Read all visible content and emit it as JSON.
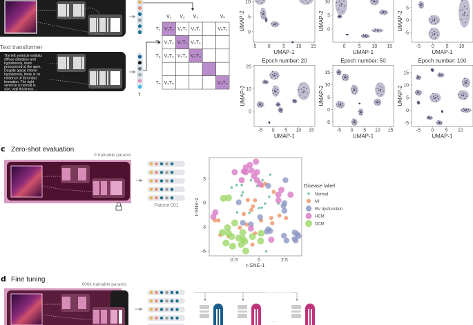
{
  "text_transformer": {
    "title": "Text transformer",
    "report_lines": [
      "The left ventricle exhibits",
      "diffuse dilatation and",
      "hypokinesis, most",
      "pronounced at the apex.",
      "Despite apical inferior",
      "hypokinesis, there is no",
      "evidence of thrombus",
      "formation. The right",
      "ventricle is normal in",
      "size, wall thickness ..."
    ],
    "vector_label": "T",
    "vector_colors": [
      "#1a5e8e",
      "#111111",
      "#777777",
      "#aaaaaa",
      "#e88ec0",
      "#3cb8e0"
    ]
  },
  "video_encoder": {
    "vector_colors": [
      "#e8b04a",
      "#e88a7a",
      "#1a6e8e",
      "#9a9a9a",
      "#1a6e8e",
      "#1a6e8e"
    ]
  },
  "similarity_matrix": {
    "col_headers": [
      "V₁",
      "V₂",
      "V₃",
      "",
      "Vₙ"
    ],
    "row_headers": [
      "T₁",
      "T₂",
      "T₃",
      "",
      "Tₙ"
    ],
    "cells": [
      [
        "V₁T₁",
        "V₂T₁",
        "V₃T₁",
        "",
        "VₙT₁"
      ],
      [
        "V₁T₂",
        "V₂T₂",
        "V₃T₂",
        "",
        ""
      ],
      [
        "V₁T₃",
        "V₂T₃",
        "V₃T₃",
        "",
        ""
      ],
      [
        "",
        "",
        "",
        "",
        ""
      ],
      [
        "V₁Tₙ",
        "",
        "",
        "",
        "VₙTₙ"
      ]
    ],
    "highlight_color": "#b98ccb"
  },
  "umap_plots": [
    {
      "title": "",
      "xlabel": "UMAP-1",
      "ylabel": "UMAP-2",
      "xticks": [
        -5,
        0,
        5,
        10,
        15
      ],
      "yticks": [
        0,
        5,
        10
      ],
      "xlim": [
        -5.3,
        15.5
      ],
      "ylim": [
        -3.5,
        15.2
      ],
      "clusters": [
        [
          -3,
          11,
          2,
          2
        ],
        [
          -2,
          6,
          1,
          2
        ],
        [
          -1,
          4,
          0.5,
          1
        ],
        [
          2,
          2.5,
          1.5,
          1
        ],
        [
          12.5,
          11,
          2.5,
          2
        ],
        [
          8,
          -3.5,
          0.3,
          0.3
        ]
      ]
    },
    {
      "title": "",
      "xlabel": "UMAP-1",
      "ylabel": "UMAP-2",
      "xticks": [
        0,
        5,
        10,
        15
      ],
      "yticks": [
        0,
        5,
        10
      ],
      "xlim": [
        -3.8,
        16.3
      ],
      "ylim": [
        -4.7,
        15.4
      ],
      "clusters": [
        [
          -1,
          9,
          2,
          4
        ],
        [
          -1.5,
          4.5,
          0.8,
          0.7
        ],
        [
          10,
          10,
          1.5,
          1.5
        ],
        [
          13,
          6,
          1.5,
          1
        ],
        [
          7,
          -2.5,
          1.5,
          0.8
        ],
        [
          11,
          -0.5,
          2,
          0.7
        ],
        [
          1,
          -2,
          0.5,
          0.2
        ]
      ]
    },
    {
      "title": "",
      "xlabel": "UMAP-1",
      "ylabel": "UMAP-2",
      "xticks": [
        -5,
        0,
        5,
        10
      ],
      "yticks": [
        -5,
        0,
        5
      ],
      "xlim": [
        -7.4,
        14.0
      ],
      "ylim": [
        -8.8,
        13.5
      ],
      "clusters": [
        [
          -4,
          6,
          1,
          1.5
        ],
        [
          0.5,
          0,
          2,
          2
        ],
        [
          0.5,
          -5.5,
          2,
          2.5
        ],
        [
          11,
          3,
          2,
          6
        ]
      ]
    },
    {
      "title": "Epoch number: 20",
      "xlabel": "UMAP-1",
      "ylabel": "UMAP-2",
      "xticks": [
        -5,
        0,
        5,
        10,
        15
      ],
      "yticks": [
        0,
        10,
        20
      ],
      "xlim": [
        -7.5,
        16.4
      ],
      "ylim": [
        -6.7,
        20.5
      ],
      "clusters": [
        [
          -5,
          3,
          1.5,
          1.5
        ],
        [
          -3,
          13,
          1.3,
          1
        ],
        [
          0.5,
          16,
          2,
          2
        ],
        [
          1,
          9,
          1.5,
          2.5
        ],
        [
          2,
          3,
          1,
          1
        ],
        [
          3,
          0.5,
          1,
          1.3
        ],
        [
          12,
          9,
          2.5,
          4
        ],
        [
          8.5,
          4.5,
          1,
          1
        ],
        [
          -1.5,
          -5,
          0.3,
          0.5
        ]
      ]
    },
    {
      "title": "Epoch number: 50",
      "xlabel": "UMAP-1",
      "ylabel": "UMAP-2",
      "xticks": [
        -5,
        0,
        5,
        10,
        15
      ],
      "yticks": [
        -5,
        0,
        5,
        10,
        15
      ],
      "xlim": [
        -7.4,
        16.2
      ],
      "ylim": [
        -6.7,
        17.9
      ],
      "clusters": [
        [
          -5,
          15,
          1,
          1.3
        ],
        [
          -2.5,
          13,
          1.5,
          1.5
        ],
        [
          1,
          8,
          1.5,
          2
        ],
        [
          11,
          8,
          2,
          3
        ],
        [
          10,
          3,
          1.5,
          1.5
        ],
        [
          -4.5,
          2,
          1.8,
          1.5
        ],
        [
          3.5,
          -1,
          1,
          1.5
        ],
        [
          1,
          -5,
          1.2,
          1.5
        ],
        [
          3,
          2.5,
          0.3,
          0.2
        ]
      ]
    },
    {
      "title": "Epoch number: 100",
      "xlabel": "UMAP-1",
      "ylabel": "UMAP-2",
      "xticks": [
        -5,
        0,
        5,
        10
      ],
      "yticks": [
        -5,
        0,
        5,
        10,
        15
      ],
      "xlim": [
        -7.5,
        14.5
      ],
      "ylim": [
        -6.4,
        17.9
      ],
      "clusters": [
        [
          -5,
          13,
          1,
          1
        ],
        [
          0,
          16,
          0.6,
          0.8
        ],
        [
          3,
          14,
          1.3,
          1
        ],
        [
          -5,
          7,
          1.3,
          1.2
        ],
        [
          -5,
          3,
          0.6,
          0.8
        ],
        [
          1,
          5,
          2,
          2
        ],
        [
          11,
          6,
          2,
          2
        ],
        [
          12,
          11,
          1.5,
          2
        ],
        [
          12,
          0,
          2,
          1
        ],
        [
          -1,
          -3,
          1.2,
          0.8
        ],
        [
          2.5,
          -5,
          1.2,
          1
        ],
        [
          3.5,
          -0.5,
          0.3,
          0.5
        ]
      ]
    }
  ],
  "zero_shot": {
    "panel_letter": "c",
    "title": "Zero-shot evaluation",
    "params_label": "0 trainable params",
    "patient_label": "Patient 001",
    "embedding_colors": [
      "#e8b04a",
      "#e88a7a",
      "#1a6e8e",
      "#9a9a9a",
      "#1a6e8e"
    ]
  },
  "fine_tuning": {
    "panel_letter": "d",
    "title": "Fine tuning",
    "params_label": "600k trainable params",
    "embedding_colors": [
      "#e8b04a",
      "#e88a7a",
      "#1a6e8e",
      "#9a9a9a",
      "#1a6e8e",
      "#1a6e8e"
    ],
    "head_colors": [
      "#1a5e8e",
      "#c0347e",
      "#c0347e"
    ],
    "ellipsis": "......"
  },
  "chart_data": {
    "type": "scatter",
    "xlabel": "t-SNE-1",
    "ylabel": "t-SNE-2",
    "xticks": [
      -2.5,
      0,
      2.5
    ],
    "yticks": [
      3,
      0,
      -3,
      -6
    ],
    "xlim": [
      -4.9,
      4.2
    ],
    "ylim": [
      -6.6,
      5.6
    ],
    "grid": false,
    "legend": {
      "title": "Disease label",
      "placement": "right"
    },
    "series": [
      {
        "name": "Normal",
        "color": "#5fb89a",
        "points": [
          [
            -2.7,
            1.9
          ],
          [
            -2.2,
            2.2
          ],
          [
            -1.7,
            2.2
          ],
          [
            -0.8,
            2.8
          ],
          [
            0.35,
            2.8
          ],
          [
            1.1,
            3.5
          ],
          [
            -0.2,
            2.1
          ],
          [
            -1.6,
            1.3
          ],
          [
            -1.7,
            0.9
          ],
          [
            1.0,
            0.75
          ],
          [
            0.6,
            -0.1
          ],
          [
            0,
            -0.65
          ],
          [
            0.27,
            -0.6
          ],
          [
            -2.15,
            -1.2
          ],
          [
            -0.95,
            -1.25
          ],
          [
            1.9,
            -0.1
          ],
          [
            0.7,
            -6.05
          ]
        ]
      },
      {
        "name": "MI",
        "color": "#ee9264",
        "points": [
          [
            -1.1,
            0.35
          ],
          [
            -0.4,
            0.3
          ],
          [
            -0.6,
            -0.45
          ],
          [
            -0.75,
            -0.9
          ],
          [
            -1.5,
            -1.4
          ],
          [
            -4.35,
            -2.2
          ],
          [
            -4.0,
            -2.2
          ],
          [
            -1.9,
            -3.1
          ],
          [
            -1.2,
            -2.7
          ],
          [
            0.2,
            -2.2
          ],
          [
            1.2,
            -1.9
          ],
          [
            1.3,
            -2.55
          ],
          [
            2.0,
            -1.6
          ],
          [
            2.65,
            -1.9
          ],
          [
            1.45,
            1.35
          ],
          [
            0.6,
            2.35
          ],
          [
            0.3,
            2.1
          ],
          [
            -0.4,
            -3.8
          ],
          [
            -0.65,
            -5.2
          ],
          [
            -3.8,
            -4.0
          ],
          [
            -3.0,
            -4.15
          ]
        ]
      },
      {
        "name": "RV dysfunction",
        "color": "#8d97c6",
        "points": [
          [
            2.6,
            2.8
          ],
          [
            0.9,
            2.1
          ],
          [
            -2.0,
            0.05
          ],
          [
            2.5,
            -0.05
          ],
          [
            2.4,
            -0.4
          ],
          [
            2.5,
            -1.0
          ],
          [
            0.1,
            -1.8
          ],
          [
            -1.6,
            -2.5
          ],
          [
            -0.8,
            -2.7
          ],
          [
            0.9,
            -3.3
          ],
          [
            1.1,
            -3.5
          ],
          [
            0.75,
            -3.6
          ],
          [
            2.45,
            -4.1
          ],
          [
            2.7,
            -4.7
          ],
          [
            3.5,
            -3.7
          ],
          [
            3.75,
            -3.9
          ],
          [
            3.5,
            -4.5
          ],
          [
            3.6,
            -4.7
          ],
          [
            3.9,
            -4.15
          ]
        ]
      },
      {
        "name": "HCM",
        "color": "#d97cc6",
        "points": [
          [
            -0.3,
            5.1
          ],
          [
            -0.9,
            4.7
          ],
          [
            -1.3,
            4.4
          ],
          [
            -1.5,
            3.9
          ],
          [
            -1.3,
            3.8
          ],
          [
            -2.4,
            3.8
          ],
          [
            -0.2,
            3.8
          ],
          [
            -0.75,
            4.0
          ],
          [
            -0.5,
            3.3
          ],
          [
            -1.7,
            2.8
          ],
          [
            -0.2,
            2.8
          ],
          [
            0.1,
            2.3
          ],
          [
            2.2,
            1.6
          ],
          [
            1.9,
            1.0
          ],
          [
            3.1,
            1.0
          ],
          [
            1.9,
            0.3
          ],
          [
            -4.3,
            -1.2
          ],
          [
            -4.5,
            -1.75
          ],
          [
            -0.8,
            -3.2
          ],
          [
            1.2,
            -4.6
          ]
        ]
      },
      {
        "name": "DCM",
        "color": "#9fd86a",
        "points": [
          [
            -3.5,
            0.55
          ],
          [
            -3.0,
            0.6
          ],
          [
            -2.4,
            -2.5
          ],
          [
            -3.1,
            -3.1
          ],
          [
            -3.6,
            -3.7
          ],
          [
            -3.0,
            -3.8
          ],
          [
            -2.7,
            -4.2
          ],
          [
            -3.25,
            -5.0
          ],
          [
            -2.6,
            -5.4
          ],
          [
            -1.6,
            -3.7
          ],
          [
            -2.0,
            -4.4
          ],
          [
            -1.6,
            -4.5
          ],
          [
            -1.75,
            -5.2
          ],
          [
            -1.3,
            -6.0
          ],
          [
            -0.65,
            -4.2
          ],
          [
            0.2,
            -3.8
          ],
          [
            0.15,
            -4.75
          ],
          [
            -1.4,
            -4.8
          ]
        ]
      }
    ]
  }
}
